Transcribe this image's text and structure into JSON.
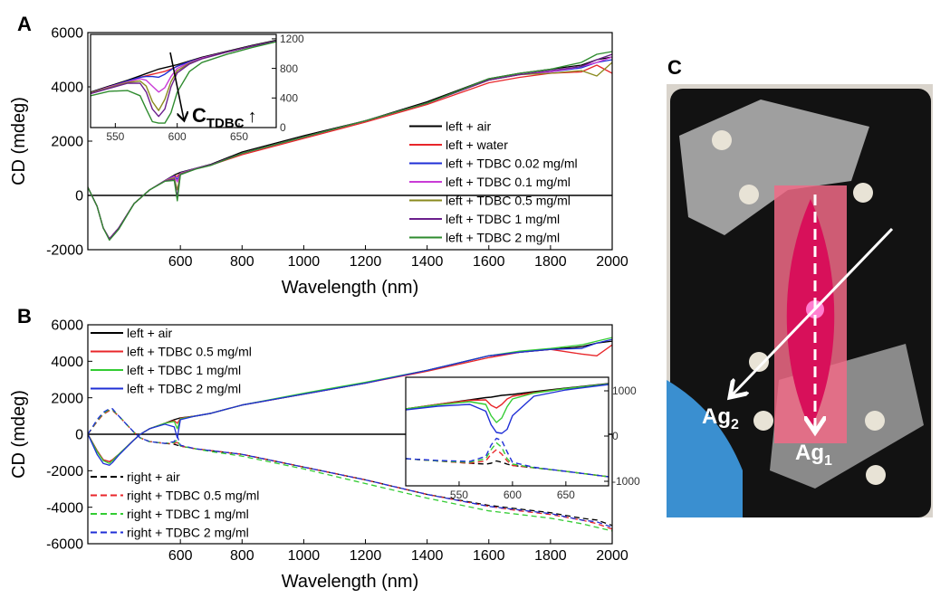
{
  "chart_data": [
    {
      "type": "line",
      "panel_label": "A",
      "xlabel": "Wavelength (nm)",
      "ylabel": "CD (mdeg)",
      "xlim": [
        300,
        2000
      ],
      "ylim": [
        -2000,
        6000
      ],
      "xticks": [
        600,
        800,
        1000,
        1200,
        1400,
        1600,
        1800,
        2000
      ],
      "yticks": [
        -2000,
        0,
        2000,
        4000,
        6000
      ],
      "zero_line": true,
      "legend": "lower right",
      "x": [
        300,
        330,
        350,
        370,
        400,
        450,
        500,
        550,
        580,
        590,
        600,
        650,
        700,
        800,
        1000,
        1200,
        1400,
        1600,
        1700,
        1800,
        1900,
        1950,
        2000
      ],
      "series": [
        {
          "name": "left + air",
          "color": "#000000",
          "values": [
            300,
            -400,
            -1200,
            -1600,
            -1200,
            -300,
            200,
            550,
            750,
            800,
            850,
            1000,
            1150,
            1600,
            2200,
            2750,
            3450,
            4300,
            4500,
            4650,
            4800,
            5000,
            5100
          ]
        },
        {
          "name": "left + water",
          "color": "#e8262a",
          "values": [
            300,
            -400,
            -1200,
            -1600,
            -1200,
            -300,
            200,
            540,
            720,
            700,
            820,
            980,
            1120,
            1500,
            2100,
            2700,
            3350,
            4150,
            4350,
            4500,
            4550,
            4800,
            4500
          ]
        },
        {
          "name": "left + TDBC 0.02 mg/ml",
          "color": "#1f2fd6",
          "values": [
            300,
            -400,
            -1200,
            -1600,
            -1200,
            -300,
            200,
            540,
            720,
            600,
            830,
            990,
            1130,
            1550,
            2150,
            2750,
            3400,
            4250,
            4450,
            4550,
            4700,
            4900,
            5000
          ]
        },
        {
          "name": "left + TDBC 0.1 mg/ml",
          "color": "#c93bd6",
          "values": [
            300,
            -400,
            -1200,
            -1600,
            -1200,
            -300,
            200,
            540,
            700,
            500,
            820,
            990,
            1130,
            1550,
            2150,
            2750,
            3400,
            4250,
            4450,
            4550,
            4750,
            4900,
            5100
          ]
        },
        {
          "name": "left + TDBC 0.5 mg/ml",
          "color": "#8a8a1e",
          "values": [
            300,
            -400,
            -1200,
            -1600,
            -1200,
            -300,
            200,
            530,
            650,
            200,
            800,
            980,
            1120,
            1550,
            2150,
            2750,
            3400,
            4250,
            4450,
            4500,
            4600,
            4400,
            4900
          ]
        },
        {
          "name": "left + TDBC 1 mg/ml",
          "color": "#6a1f8c",
          "values": [
            300,
            -400,
            -1200,
            -1600,
            -1200,
            -300,
            200,
            530,
            600,
            -50,
            780,
            980,
            1120,
            1550,
            2150,
            2750,
            3400,
            4250,
            4450,
            4600,
            4750,
            5000,
            5200
          ]
        },
        {
          "name": "left + TDBC 2 mg/ml",
          "color": "#2e8b2e",
          "values": [
            300,
            -400,
            -1200,
            -1650,
            -1250,
            -300,
            200,
            520,
            550,
            -200,
            760,
            970,
            1110,
            1550,
            2150,
            2750,
            3400,
            4300,
            4500,
            4650,
            4900,
            5200,
            5300
          ]
        }
      ]
    },
    {
      "type": "line",
      "y_axis_side": "right",
      "inset": true,
      "xlim": [
        530,
        680
      ],
      "ylim": [
        0,
        1260
      ],
      "xticks": [
        550,
        600,
        650
      ],
      "yticks": [
        0,
        400,
        800,
        1200
      ],
      "annotation": "C",
      "annotation_sub": "TDBC",
      "annotation_arrow": "↑",
      "x": [
        530,
        545,
        560,
        570,
        575,
        580,
        585,
        590,
        595,
        600,
        610,
        620,
        640,
        660,
        680
      ],
      "series": [
        {
          "color": "#000000",
          "values": [
            480,
            560,
            640,
            700,
            730,
            760,
            790,
            810,
            830,
            850,
            900,
            950,
            1030,
            1110,
            1180
          ]
        },
        {
          "color": "#e8262a",
          "values": [
            460,
            540,
            620,
            680,
            700,
            720,
            740,
            760,
            790,
            830,
            890,
            940,
            1020,
            1100,
            1170
          ]
        },
        {
          "color": "#1f2fd6",
          "values": [
            470,
            550,
            630,
            680,
            690,
            690,
            680,
            720,
            780,
            830,
            890,
            940,
            1020,
            1100,
            1170
          ]
        },
        {
          "color": "#c93bd6",
          "values": [
            470,
            550,
            620,
            660,
            640,
            560,
            480,
            540,
            690,
            800,
            880,
            940,
            1020,
            1100,
            1170
          ]
        },
        {
          "color": "#8a8a1e",
          "values": [
            470,
            540,
            610,
            630,
            560,
            350,
            230,
            380,
            620,
            770,
            870,
            930,
            1020,
            1100,
            1170
          ]
        },
        {
          "color": "#6a1f8c",
          "values": [
            460,
            530,
            600,
            600,
            480,
            250,
            150,
            250,
            550,
            740,
            860,
            930,
            1020,
            1100,
            1170
          ]
        },
        {
          "color": "#2e8b2e",
          "values": [
            430,
            490,
            500,
            430,
            250,
            80,
            60,
            60,
            200,
            480,
            760,
            880,
            990,
            1080,
            1160
          ]
        }
      ]
    },
    {
      "type": "line",
      "panel_label": "B",
      "xlabel": "Wavelength (nm)",
      "ylabel": "CD (mdeg)",
      "xlim": [
        300,
        2000
      ],
      "ylim": [
        -6000,
        6000
      ],
      "xticks": [
        600,
        800,
        1000,
        1200,
        1400,
        1600,
        1800,
        2000
      ],
      "yticks": [
        -6000,
        -4000,
        -2000,
        0,
        2000,
        4000,
        6000
      ],
      "zero_line": true,
      "legend": "left",
      "x": [
        300,
        330,
        350,
        370,
        380,
        400,
        450,
        470,
        500,
        550,
        580,
        590,
        600,
        650,
        700,
        800,
        1000,
        1200,
        1400,
        1600,
        1700,
        1800,
        1900,
        1950,
        2000
      ],
      "series": [
        {
          "name": "left + air",
          "color": "#000000",
          "dash": false,
          "values": [
            0,
            -900,
            -1400,
            -1500,
            -1400,
            -1100,
            -300,
            0,
            300,
            600,
            800,
            850,
            900,
            1000,
            1150,
            1600,
            2200,
            2800,
            3500,
            4300,
            4500,
            4650,
            4800,
            5000,
            5100
          ]
        },
        {
          "name": "left + TDBC 0.5 mg/ml",
          "color": "#e8262a",
          "dash": false,
          "values": [
            0,
            -900,
            -1400,
            -1500,
            -1400,
            -1100,
            -300,
            0,
            300,
            600,
            750,
            600,
            880,
            1000,
            1150,
            1600,
            2200,
            2800,
            3450,
            4200,
            4500,
            4650,
            4400,
            4300,
            4900
          ]
        },
        {
          "name": "left + TDBC 1 mg/ml",
          "color": "#33cc33",
          "dash": false,
          "values": [
            0,
            -950,
            -1450,
            -1600,
            -1450,
            -1100,
            -300,
            0,
            300,
            600,
            700,
            300,
            850,
            1000,
            1150,
            1600,
            2250,
            2850,
            3500,
            4300,
            4550,
            4700,
            4900,
            5100,
            5300
          ]
        },
        {
          "name": "left + TDBC 2 mg/ml",
          "color": "#1f2fd6",
          "dash": false,
          "values": [
            0,
            -1100,
            -1600,
            -1700,
            -1550,
            -1150,
            -300,
            0,
            300,
            550,
            400,
            -200,
            800,
            1000,
            1150,
            1600,
            2200,
            2800,
            3500,
            4300,
            4500,
            4650,
            4700,
            5000,
            5200
          ]
        },
        {
          "name": "right + air",
          "color": "#000000",
          "dash": true,
          "values": [
            0,
            700,
            1100,
            1300,
            1300,
            1000,
            100,
            -200,
            -400,
            -500,
            -550,
            -600,
            -650,
            -800,
            -900,
            -1100,
            -1800,
            -2500,
            -3300,
            -3900,
            -4100,
            -4300,
            -4600,
            -4700,
            -5000
          ]
        },
        {
          "name": "right + TDBC 0.5 mg/ml",
          "color": "#e8262a",
          "dash": true,
          "values": [
            0,
            700,
            1100,
            1300,
            1300,
            1000,
            100,
            -200,
            -400,
            -500,
            -500,
            -450,
            -650,
            -800,
            -900,
            -1100,
            -1800,
            -2500,
            -3300,
            -3950,
            -4200,
            -4400,
            -4700,
            -4900,
            -5200
          ]
        },
        {
          "name": "right + TDBC 1 mg/ml",
          "color": "#33cc33",
          "dash": true,
          "values": [
            0,
            750,
            1150,
            1350,
            1350,
            1000,
            100,
            -200,
            -400,
            -500,
            -450,
            -300,
            -650,
            -800,
            -950,
            -1200,
            -1900,
            -2700,
            -3500,
            -4200,
            -4400,
            -4600,
            -4900,
            -5100,
            -5300
          ]
        },
        {
          "name": "right + TDBC 2 mg/ml",
          "color": "#1f2fd6",
          "dash": true,
          "values": [
            0,
            800,
            1200,
            1400,
            1400,
            1000,
            100,
            -200,
            -400,
            -500,
            -400,
            -100,
            -600,
            -800,
            -900,
            -1100,
            -1800,
            -2500,
            -3300,
            -3950,
            -4150,
            -4350,
            -4700,
            -4800,
            -5100
          ]
        }
      ]
    },
    {
      "type": "line",
      "y_axis_side": "right",
      "inset": true,
      "xlim": [
        500,
        690
      ],
      "ylim": [
        -1100,
        1300
      ],
      "xticks": [
        550,
        600,
        650
      ],
      "yticks": [
        -1000,
        0,
        1000
      ],
      "x": [
        500,
        530,
        560,
        575,
        580,
        585,
        590,
        595,
        600,
        620,
        650,
        690
      ],
      "series": [
        {
          "color": "#000000",
          "dash": false,
          "values": [
            600,
            700,
            800,
            850,
            860,
            880,
            900,
            910,
            920,
            980,
            1060,
            1160
          ]
        },
        {
          "color": "#e8262a",
          "dash": false,
          "values": [
            600,
            700,
            790,
            800,
            680,
            620,
            700,
            820,
            880,
            960,
            1050,
            1150
          ]
        },
        {
          "color": "#33cc33",
          "dash": false,
          "values": [
            600,
            690,
            760,
            700,
            450,
            300,
            400,
            650,
            820,
            950,
            1050,
            1150
          ]
        },
        {
          "color": "#1f2fd6",
          "dash": false,
          "values": [
            580,
            660,
            700,
            550,
            250,
            80,
            60,
            150,
            450,
            880,
            1020,
            1140
          ]
        },
        {
          "color": "#000000",
          "dash": true,
          "values": [
            -500,
            -550,
            -600,
            -620,
            -600,
            -550,
            -580,
            -620,
            -650,
            -700,
            -780,
            -900
          ]
        },
        {
          "color": "#e8262a",
          "dash": true,
          "values": [
            -500,
            -550,
            -600,
            -550,
            -400,
            -300,
            -400,
            -550,
            -650,
            -700,
            -780,
            -900
          ]
        },
        {
          "color": "#33cc33",
          "dash": true,
          "values": [
            -500,
            -550,
            -580,
            -500,
            -300,
            -150,
            -250,
            -500,
            -620,
            -700,
            -780,
            -900
          ]
        },
        {
          "color": "#1f2fd6",
          "dash": true,
          "values": [
            -500,
            -540,
            -560,
            -450,
            -200,
            -50,
            -100,
            -350,
            -580,
            -690,
            -780,
            -900
          ]
        }
      ]
    }
  ],
  "panel_c": {
    "label": "C",
    "arrow_labels": [
      {
        "text": "Ag",
        "sub": "2"
      },
      {
        "text": "Ag",
        "sub": "1"
      }
    ]
  }
}
